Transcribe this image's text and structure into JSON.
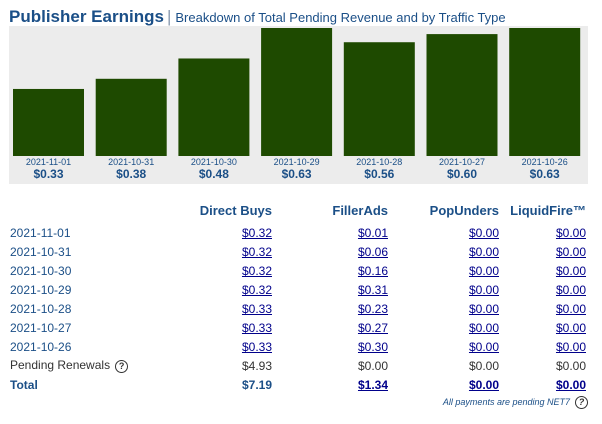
{
  "header": {
    "title": "Publisher Earnings",
    "separator": "|",
    "subtitle": "Breakdown of Total Pending Revenue and by Traffic Type"
  },
  "colors": {
    "bar": "#1e4a00",
    "panel": "#ececec",
    "accent": "#1b4f87",
    "link": "#00008b"
  },
  "chart_data": {
    "type": "bar",
    "categories": [
      "2021-11-01",
      "2021-10-31",
      "2021-10-30",
      "2021-10-29",
      "2021-10-28",
      "2021-10-27",
      "2021-10-26"
    ],
    "values": [
      0.33,
      0.38,
      0.48,
      0.63,
      0.56,
      0.6,
      0.63
    ],
    "value_labels": [
      "$0.33",
      "$0.38",
      "$0.48",
      "$0.63",
      "$0.56",
      "$0.60",
      "$0.63"
    ],
    "ylim": [
      0,
      0.63
    ]
  },
  "table": {
    "columns": [
      "",
      "Direct Buys",
      "FillerAds",
      "PopUnders",
      "LiquidFire™"
    ],
    "rows": [
      {
        "date": "2021-11-01",
        "cells": [
          "$0.32",
          "$0.01",
          "$0.00",
          "$0.00"
        ]
      },
      {
        "date": "2021-10-31",
        "cells": [
          "$0.32",
          "$0.06",
          "$0.00",
          "$0.00"
        ]
      },
      {
        "date": "2021-10-30",
        "cells": [
          "$0.32",
          "$0.16",
          "$0.00",
          "$0.00"
        ]
      },
      {
        "date": "2021-10-29",
        "cells": [
          "$0.32",
          "$0.31",
          "$0.00",
          "$0.00"
        ]
      },
      {
        "date": "2021-10-28",
        "cells": [
          "$0.33",
          "$0.23",
          "$0.00",
          "$0.00"
        ]
      },
      {
        "date": "2021-10-27",
        "cells": [
          "$0.33",
          "$0.27",
          "$0.00",
          "$0.00"
        ]
      },
      {
        "date": "2021-10-26",
        "cells": [
          "$0.33",
          "$0.30",
          "$0.00",
          "$0.00"
        ]
      }
    ],
    "renewals": {
      "label": "Pending Renewals",
      "help": "?",
      "cells": [
        "$4.93",
        "$0.00",
        "$0.00",
        "$0.00"
      ]
    },
    "total": {
      "label": "Total",
      "cells": [
        "$7.19",
        "$1.34",
        "$0.00",
        "$0.00"
      ]
    }
  },
  "footnote": {
    "text": "All payments are pending NET7",
    "help": "?"
  }
}
